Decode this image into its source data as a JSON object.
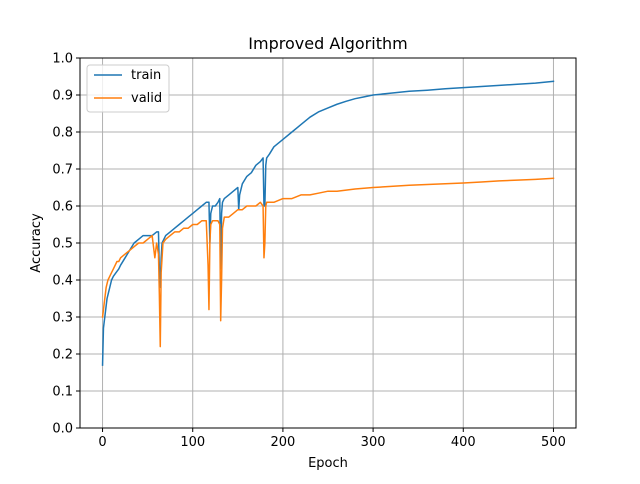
{
  "colors": {
    "train": "#1f77b4",
    "valid": "#ff7f0e",
    "grid": "#b0b0b0",
    "axes": "#000000",
    "background": "#ffffff"
  },
  "chart_data": {
    "type": "line",
    "title": "Improved Algorithm",
    "xlabel": "Epoch",
    "ylabel": "Accuracy",
    "xlim": [
      -25,
      525
    ],
    "ylim": [
      0.0,
      1.0
    ],
    "xticks": [
      0,
      100,
      200,
      300,
      400,
      500
    ],
    "yticks": [
      0.0,
      0.1,
      0.2,
      0.3,
      0.4,
      0.5,
      0.6,
      0.7,
      0.8,
      0.9,
      1.0
    ],
    "xtick_labels": [
      "0",
      "100",
      "200",
      "300",
      "400",
      "500"
    ],
    "ytick_labels": [
      "0.0",
      "0.1",
      "0.2",
      "0.3",
      "0.4",
      "0.5",
      "0.6",
      "0.7",
      "0.8",
      "0.9",
      "1.0"
    ],
    "grid": true,
    "legend_position": "top-left",
    "series": [
      {
        "name": "train",
        "color": "#1f77b4",
        "x": [
          0,
          1,
          2,
          3,
          4,
          5,
          6,
          8,
          10,
          12,
          15,
          18,
          20,
          25,
          30,
          35,
          40,
          45,
          50,
          55,
          60,
          62,
          63,
          64,
          65,
          66,
          70,
          75,
          80,
          85,
          90,
          95,
          100,
          105,
          110,
          115,
          118,
          119,
          120,
          122,
          125,
          128,
          130,
          131,
          132,
          133,
          135,
          140,
          145,
          150,
          151,
          152,
          155,
          160,
          165,
          170,
          175,
          178,
          179,
          180,
          181,
          182,
          185,
          190,
          200,
          210,
          220,
          230,
          240,
          250,
          260,
          270,
          280,
          290,
          300,
          320,
          340,
          360,
          380,
          400,
          420,
          440,
          460,
          480,
          500
        ],
        "y": [
          0.17,
          0.27,
          0.29,
          0.31,
          0.33,
          0.35,
          0.36,
          0.38,
          0.4,
          0.41,
          0.42,
          0.43,
          0.44,
          0.46,
          0.48,
          0.5,
          0.51,
          0.52,
          0.52,
          0.52,
          0.53,
          0.53,
          0.43,
          0.38,
          0.46,
          0.5,
          0.52,
          0.53,
          0.54,
          0.55,
          0.56,
          0.57,
          0.58,
          0.59,
          0.6,
          0.61,
          0.61,
          0.5,
          0.58,
          0.6,
          0.6,
          0.61,
          0.62,
          0.43,
          0.58,
          0.61,
          0.62,
          0.63,
          0.64,
          0.65,
          0.59,
          0.63,
          0.66,
          0.68,
          0.69,
          0.71,
          0.72,
          0.73,
          0.6,
          0.6,
          0.71,
          0.73,
          0.74,
          0.76,
          0.78,
          0.8,
          0.82,
          0.84,
          0.855,
          0.865,
          0.875,
          0.883,
          0.89,
          0.895,
          0.9,
          0.905,
          0.91,
          0.913,
          0.917,
          0.92,
          0.923,
          0.926,
          0.929,
          0.932,
          0.937
        ]
      },
      {
        "name": "valid",
        "color": "#ff7f0e",
        "x": [
          0,
          1,
          2,
          3,
          4,
          5,
          6,
          8,
          10,
          12,
          14,
          16,
          18,
          20,
          25,
          30,
          35,
          40,
          45,
          50,
          55,
          58,
          60,
          62,
          63,
          64,
          65,
          66,
          67,
          70,
          75,
          80,
          85,
          90,
          95,
          100,
          105,
          110,
          115,
          117,
          118,
          119,
          120,
          122,
          125,
          128,
          130,
          131,
          132,
          133,
          135,
          140,
          145,
          150,
          155,
          160,
          165,
          170,
          175,
          178,
          179,
          180,
          181,
          182,
          185,
          190,
          200,
          210,
          220,
          230,
          240,
          250,
          260,
          270,
          280,
          290,
          300,
          320,
          340,
          360,
          380,
          400,
          420,
          440,
          460,
          480,
          500
        ],
        "y": [
          0.3,
          0.32,
          0.34,
          0.36,
          0.38,
          0.39,
          0.4,
          0.41,
          0.42,
          0.43,
          0.44,
          0.45,
          0.45,
          0.46,
          0.47,
          0.48,
          0.49,
          0.5,
          0.5,
          0.51,
          0.52,
          0.46,
          0.5,
          0.47,
          0.36,
          0.22,
          0.42,
          0.46,
          0.5,
          0.51,
          0.52,
          0.53,
          0.53,
          0.54,
          0.54,
          0.55,
          0.55,
          0.56,
          0.56,
          0.44,
          0.32,
          0.5,
          0.55,
          0.56,
          0.56,
          0.56,
          0.55,
          0.29,
          0.4,
          0.54,
          0.57,
          0.57,
          0.58,
          0.59,
          0.59,
          0.6,
          0.6,
          0.6,
          0.61,
          0.6,
          0.46,
          0.5,
          0.6,
          0.61,
          0.61,
          0.61,
          0.62,
          0.62,
          0.63,
          0.63,
          0.635,
          0.64,
          0.64,
          0.643,
          0.646,
          0.648,
          0.65,
          0.653,
          0.656,
          0.658,
          0.66,
          0.662,
          0.665,
          0.668,
          0.67,
          0.672,
          0.675
        ]
      }
    ]
  }
}
